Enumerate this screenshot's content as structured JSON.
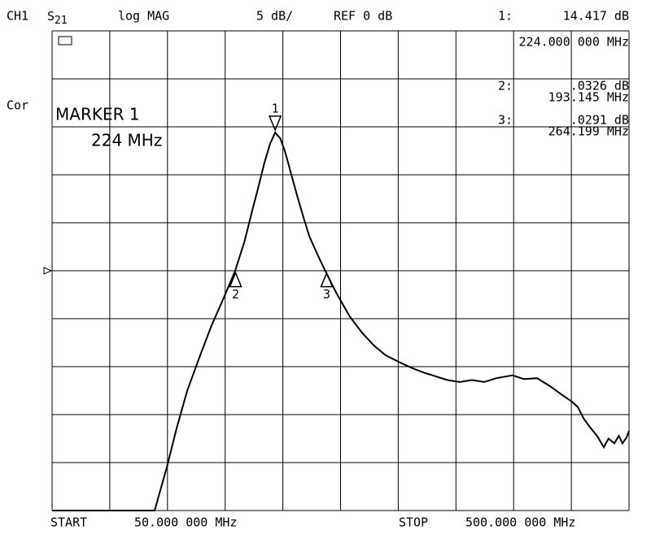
{
  "chart_data": {
    "type": "line",
    "channel": "CH1",
    "parameter": {
      "base": "S",
      "sub": "21"
    },
    "format": "log MAG",
    "scale": "5 dB/",
    "ref": {
      "value": 0,
      "label": "REF 0 dB"
    },
    "correction": "Cor",
    "annotation": {
      "title": "MARKER 1",
      "text": "224 MHz"
    },
    "start_label": "START",
    "start": "50.000 000 MHz",
    "stop_label": "STOP",
    "stop": "500.000 000 MHz",
    "xlim": [
      50,
      500
    ],
    "ylim": [
      -25,
      25
    ],
    "xticks": [
      50,
      95,
      140,
      185,
      230,
      275,
      320,
      365,
      410,
      455,
      500
    ],
    "yticks": [
      -25,
      -20,
      -15,
      -10,
      -5,
      0,
      5,
      10,
      15,
      20,
      25
    ],
    "grid": true,
    "color": "#000000",
    "x": [
      50,
      100,
      130,
      139.5,
      147,
      155.4,
      165,
      174.4,
      184,
      192.8,
      200,
      206,
      211,
      215.7,
      220,
      224,
      228,
      231.5,
      236,
      241,
      246,
      250.6,
      257,
      263,
      272,
      282.3,
      292,
      301,
      310,
      320.4,
      330,
      339.4,
      349,
      358.4,
      368,
      377.5,
      387,
      396.5,
      409.2,
      418,
      428.3,
      438,
      447.3,
      455,
      460,
      465,
      469.5,
      475,
      480.3,
      484,
      488.6,
      492,
      494.9,
      498,
      500
    ],
    "series": [
      {
        "values": [
          -25,
          -25,
          -25,
          -20.5,
          -16.5,
          -12.5,
          -9,
          -5.7,
          -2.8,
          0,
          3,
          6.2,
          8.8,
          11.3,
          13.2,
          14.4,
          13.8,
          12.5,
          10.3,
          7.9,
          5.6,
          3.6,
          1.7,
          0,
          -2.4,
          -4.8,
          -6.5,
          -7.8,
          -8.8,
          -9.5,
          -10.1,
          -10.6,
          -11,
          -11.4,
          -11.6,
          -11.4,
          -11.6,
          -11.2,
          -10.9,
          -11.3,
          -11.2,
          -12,
          -12.9,
          -13.6,
          -14.2,
          -15.5,
          -16.3,
          -17.2,
          -18.4,
          -17.5,
          -18,
          -17.2,
          -18,
          -17.4,
          -16.7
        ]
      }
    ],
    "markers": [
      {
        "name": "1",
        "readout": "1:",
        "freq": 224,
        "freq_label": "224.000 000 MHz",
        "value": 14.417,
        "value_label": "14.417 dB",
        "direction": "down"
      },
      {
        "name": "2",
        "readout": "2:",
        "freq": 193.145,
        "freq_label": "193.145 MHz",
        "value": 0.0326,
        "value_label": ".0326 dB",
        "direction": "up"
      },
      {
        "name": "3",
        "readout": "3:",
        "freq": 264.199,
        "freq_label": "264.199 MHz",
        "value": 0.0291,
        "value_label": ".0291 dB",
        "direction": "up"
      }
    ]
  }
}
